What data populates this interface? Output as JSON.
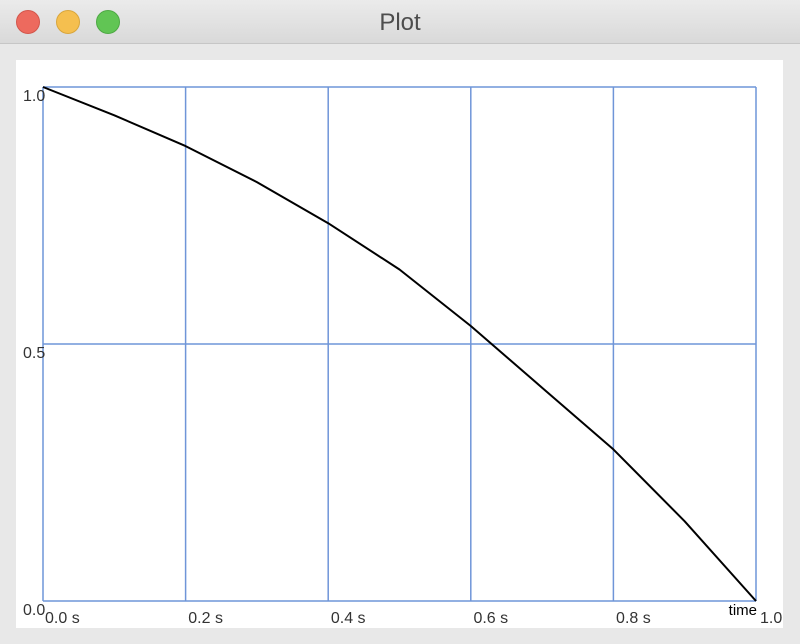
{
  "window": {
    "title": "Plot",
    "traffic_lights": [
      "close",
      "minimize",
      "zoom"
    ]
  },
  "colors": {
    "grid": "#6f95d8",
    "curve": "#000000",
    "canvas": "#ffffff"
  },
  "chart_data": {
    "type": "line",
    "title": "",
    "xlabel": "time",
    "ylabel": "",
    "xlim": [
      0,
      1.0
    ],
    "ylim": [
      0,
      1.0
    ],
    "grid": true,
    "x_ticks": [
      {
        "value": 0.0,
        "label": "0.0 s"
      },
      {
        "value": 0.2,
        "label": "0.2 s"
      },
      {
        "value": 0.4,
        "label": "0.4 s"
      },
      {
        "value": 0.6,
        "label": "0.6 s"
      },
      {
        "value": 0.8,
        "label": "0.8 s"
      },
      {
        "value": 1.0,
        "label": "1.0"
      }
    ],
    "y_ticks": [
      {
        "value": 0.0,
        "label": "0.0"
      },
      {
        "value": 0.5,
        "label": "0.5"
      },
      {
        "value": 1.0,
        "label": "1.0"
      }
    ],
    "series": [
      {
        "x": [
          0.0,
          0.1,
          0.2,
          0.3,
          0.4,
          0.5,
          0.6,
          0.7,
          0.8,
          0.9,
          1.0
        ],
        "y": [
          1.0,
          0.945,
          0.885,
          0.815,
          0.735,
          0.645,
          0.535,
          0.415,
          0.295,
          0.155,
          0.0
        ]
      }
    ]
  }
}
